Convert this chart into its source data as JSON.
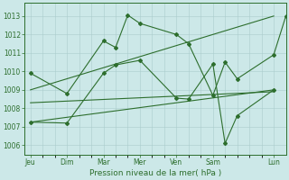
{
  "xlabel": "Pression niveau de la mer( hPa )",
  "bg_color": "#cce8e8",
  "grid_color": "#aacccc",
  "line_color": "#2d6e2d",
  "ylim": [
    1005.5,
    1013.7
  ],
  "yticks": [
    1006,
    1007,
    1008,
    1009,
    1010,
    1011,
    1012,
    1013
  ],
  "day_tick_labels": [
    "Jeu",
    "Dim",
    "Mar",
    "Mer",
    "Ven",
    "Sam",
    "Lun"
  ],
  "day_tick_positions": [
    0,
    3,
    6,
    9,
    12,
    15,
    20
  ],
  "xlim": [
    -0.5,
    21.0
  ],
  "series1_x": [
    0,
    3,
    6,
    7,
    8,
    9,
    12,
    13,
    15,
    16,
    17,
    20,
    21
  ],
  "series1_y": [
    1009.9,
    1008.8,
    1011.65,
    1011.3,
    1013.05,
    1012.6,
    1012.0,
    1011.5,
    1008.7,
    1010.5,
    1009.6,
    1010.9,
    1013.0
  ],
  "series2_x": [
    0,
    3,
    6,
    7,
    9,
    12,
    13,
    15,
    16,
    17,
    20
  ],
  "series2_y": [
    1007.25,
    1007.2,
    1009.9,
    1010.35,
    1010.6,
    1008.55,
    1008.5,
    1010.4,
    1006.1,
    1007.6,
    1009.0
  ],
  "trend1_x": [
    0,
    20
  ],
  "trend1_y": [
    1009.0,
    1013.0
  ],
  "trend2_x": [
    0,
    20
  ],
  "trend2_y": [
    1007.25,
    1009.0
  ],
  "trend3_x": [
    0,
    20
  ],
  "trend3_y": [
    1008.3,
    1008.9
  ]
}
